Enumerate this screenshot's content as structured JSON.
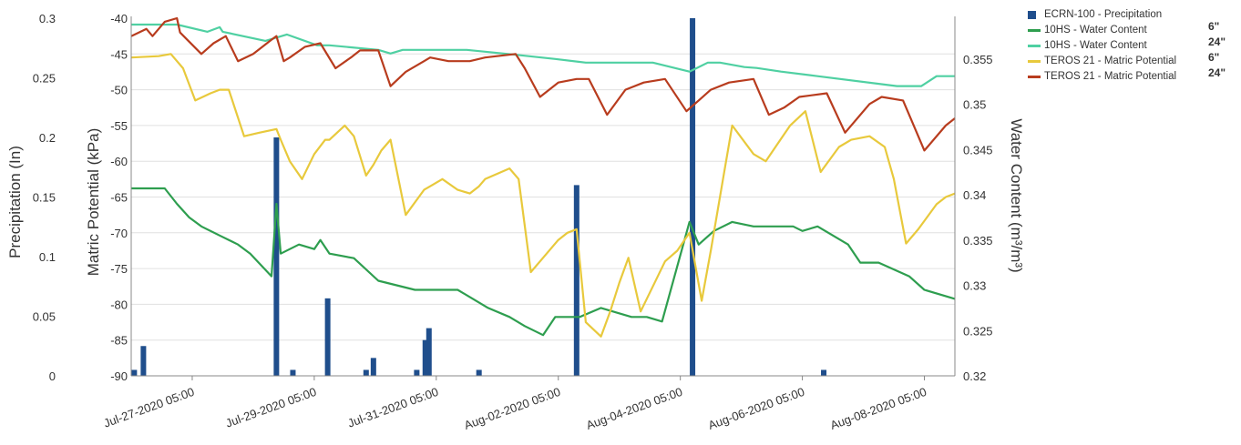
{
  "chart_data": {
    "type": "line",
    "x_ticks": [
      "Jul-27-2020 05:00",
      "Jul-29-2020 05:00",
      "Jul-31-2020 05:00",
      "Aug-02-2020 05:00",
      "Aug-04-2020 05:00",
      "Aug-06-2020 05:00",
      "Aug-08-2020 05:00"
    ],
    "xlim_days": [
      0,
      13.5
    ],
    "axes": {
      "precip": {
        "label": "Precipitation (In)",
        "min": 0,
        "max": 0.3,
        "ticks": [
          "0.3",
          "0.25",
          "0.2",
          "0.15",
          "0.1",
          "0.05",
          "0"
        ]
      },
      "matric": {
        "label": "Matric Potential (kPa)",
        "min": -90,
        "max": -40,
        "ticks": [
          "-40",
          "-45",
          "-50",
          "-55",
          "-60",
          "-65",
          "-70",
          "-75",
          "-80",
          "-85",
          "-90"
        ]
      },
      "water": {
        "label": "Water Content (m³/m³)",
        "min": 0.32,
        "max": 0.3595,
        "ticks": [
          "0.355",
          "0.35",
          "0.345",
          "0.34",
          "0.335",
          "0.33",
          "0.325",
          "0.32"
        ]
      }
    },
    "legend": [
      {
        "label": "ECRN-100 - Precipitation",
        "depth": "",
        "color": "#1f4e8c",
        "kind": "bar"
      },
      {
        "label": "10HS - Water Content",
        "depth": "6\"",
        "color": "#2e9e4f",
        "kind": "line"
      },
      {
        "label": "10HS - Water Content",
        "depth": "24\"",
        "color": "#4fd0a2",
        "kind": "line"
      },
      {
        "label": "TEROS 21 - Matric Potential",
        "depth": "6\"",
        "color": "#e8c93c",
        "kind": "line"
      },
      {
        "label": "TEROS 21 - Matric Potential",
        "depth": "24\"",
        "color": "#b83c1e",
        "kind": "line"
      }
    ],
    "series": [
      {
        "name": "ECRN-100 - Precipitation",
        "axis": "precip",
        "type": "bar",
        "color": "#1f4e8c",
        "x": [
          0.05,
          0.2,
          2.38,
          2.65,
          3.22,
          3.85,
          3.97,
          4.68,
          4.82,
          4.88,
          5.7,
          7.3,
          9.2,
          11.35
        ],
        "y": [
          0.005,
          0.025,
          0.2,
          0.005,
          0.065,
          0.005,
          0.015,
          0.005,
          0.03,
          0.04,
          0.005,
          0.16,
          0.3,
          0.005
        ]
      },
      {
        "name": "10HS - Water Content",
        "depth": "6\"",
        "axis": "water",
        "type": "line",
        "color": "#2e9e4f",
        "x": [
          0,
          0.55,
          0.75,
          0.95,
          1.15,
          1.45,
          1.75,
          1.95,
          2.3,
          2.38,
          2.45,
          2.75,
          3.0,
          3.1,
          3.25,
          3.65,
          4.05,
          4.65,
          5.35,
          5.6,
          5.85,
          6.2,
          6.45,
          6.75,
          6.95,
          7.35,
          7.7,
          8.2,
          8.45,
          8.7,
          9.15,
          9.3,
          9.55,
          9.85,
          10.2,
          10.35,
          10.85,
          11.0,
          11.25,
          11.75,
          11.95,
          12.25,
          12.75,
          13.0,
          13.5
        ],
        "y": [
          0.3407,
          0.3407,
          0.339,
          0.3375,
          0.3365,
          0.3355,
          0.3345,
          0.3335,
          0.331,
          0.339,
          0.3335,
          0.3345,
          0.334,
          0.335,
          0.3335,
          0.333,
          0.3305,
          0.3295,
          0.3295,
          0.3285,
          0.3275,
          0.3265,
          0.3255,
          0.3245,
          0.3265,
          0.3265,
          0.3275,
          0.3265,
          0.3265,
          0.326,
          0.337,
          0.3345,
          0.336,
          0.337,
          0.3365,
          0.3365,
          0.3365,
          0.336,
          0.3365,
          0.3345,
          0.3325,
          0.3325,
          0.331,
          0.3295,
          0.3285
        ]
      },
      {
        "name": "10HS - Water Content",
        "depth": "24\"",
        "axis": "water",
        "type": "line",
        "color": "#4fd0a2",
        "x": [
          0,
          0.75,
          1.25,
          1.45,
          1.5,
          2.2,
          2.55,
          3.05,
          3.25,
          4.05,
          4.25,
          4.45,
          4.9,
          5.5,
          6.25,
          6.95,
          7.45,
          8.2,
          8.55,
          9.15,
          9.45,
          9.65,
          10.05,
          10.25,
          10.65,
          11.25,
          12.55,
          12.95,
          13.2,
          13.5
        ],
        "y": [
          0.3588,
          0.3588,
          0.358,
          0.3585,
          0.358,
          0.357,
          0.3577,
          0.3565,
          0.3565,
          0.356,
          0.3556,
          0.356,
          0.356,
          0.356,
          0.3555,
          0.355,
          0.3546,
          0.3546,
          0.3546,
          0.3536,
          0.3546,
          0.3546,
          0.3541,
          0.354,
          0.3536,
          0.3531,
          0.352,
          0.352,
          0.3531,
          0.3531
        ]
      },
      {
        "name": "TEROS 21 - Matric Potential",
        "depth": "6\"",
        "axis": "matric",
        "type": "line",
        "color": "#e8c93c",
        "x": [
          0,
          0.45,
          0.65,
          0.85,
          1.05,
          1.3,
          1.45,
          1.6,
          1.85,
          2.1,
          2.38,
          2.45,
          2.6,
          2.8,
          3.0,
          3.18,
          3.25,
          3.5,
          3.65,
          3.85,
          3.97,
          4.1,
          4.25,
          4.5,
          4.8,
          4.9,
          5.1,
          5.35,
          5.55,
          5.7,
          5.8,
          6.2,
          6.35,
          6.55,
          6.75,
          7.0,
          7.15,
          7.3,
          7.45,
          7.7,
          7.85,
          8.0,
          8.15,
          8.35,
          8.75,
          8.95,
          9.15,
          9.35,
          9.5,
          9.7,
          9.85,
          10.2,
          10.4,
          10.6,
          10.8,
          11.05,
          11.3,
          11.6,
          11.8,
          12.1,
          12.35,
          12.5,
          12.7,
          12.9,
          13.2,
          13.35,
          13.5
        ],
        "y": [
          -45.5,
          -45.3,
          -45,
          -47,
          -51.5,
          -50.5,
          -50,
          -50,
          -56.5,
          -56,
          -55.5,
          -57,
          -60,
          -62.5,
          -59,
          -57,
          -57,
          -55,
          -56.5,
          -62,
          -60.5,
          -58.5,
          -57,
          -67.5,
          -64,
          -63.5,
          -62.5,
          -64,
          -64.5,
          -63.5,
          -62.5,
          -61,
          -62.5,
          -75.5,
          -73.5,
          -71,
          -70,
          -69.5,
          -82.5,
          -84.5,
          -81,
          -77,
          -73.5,
          -81,
          -74,
          -72.5,
          -70,
          -79.5,
          -72.5,
          -62.5,
          -55,
          -59,
          -60,
          -57.5,
          -55,
          -53,
          -61.5,
          -58,
          -57,
          -56.5,
          -58,
          -62.5,
          -71.5,
          -69.5,
          -66,
          -65,
          -64.5
        ]
      },
      {
        "name": "TEROS 21 - Matric Potential",
        "depth": "24\"",
        "axis": "matric",
        "type": "line",
        "color": "#b83c1e",
        "x": [
          0,
          0.25,
          0.35,
          0.55,
          0.75,
          0.8,
          1.15,
          1.35,
          1.55,
          1.75,
          2.0,
          2.3,
          2.38,
          2.5,
          2.6,
          2.85,
          3.1,
          3.35,
          3.6,
          3.75,
          4.05,
          4.25,
          4.5,
          4.8,
          4.9,
          5.2,
          5.55,
          5.8,
          6.3,
          6.45,
          6.7,
          7.0,
          7.3,
          7.5,
          7.8,
          8.1,
          8.4,
          8.75,
          9.1,
          9.3,
          9.5,
          9.8,
          10.2,
          10.45,
          10.7,
          10.95,
          11.4,
          11.7,
          12.1,
          12.3,
          12.65,
          13.0,
          13.35,
          13.5
        ],
        "y": [
          -42.5,
          -41.5,
          -42.5,
          -40.5,
          -40,
          -42,
          -45,
          -43.5,
          -42.5,
          -46,
          -45,
          -43,
          -42.5,
          -46,
          -45.5,
          -44,
          -43.5,
          -47,
          -45.5,
          -44.5,
          -44.5,
          -49.5,
          -47.5,
          -46,
          -45.5,
          -46,
          -46,
          -45.5,
          -45,
          -47,
          -51,
          -49,
          -48.5,
          -48.5,
          -53.5,
          -50,
          -49,
          -48.5,
          -53,
          -51.5,
          -50,
          -49,
          -48.5,
          -53.5,
          -52.5,
          -51,
          -50.5,
          -56,
          -52,
          -51,
          -51.5,
          -58.5,
          -55,
          -54
        ]
      }
    ]
  }
}
